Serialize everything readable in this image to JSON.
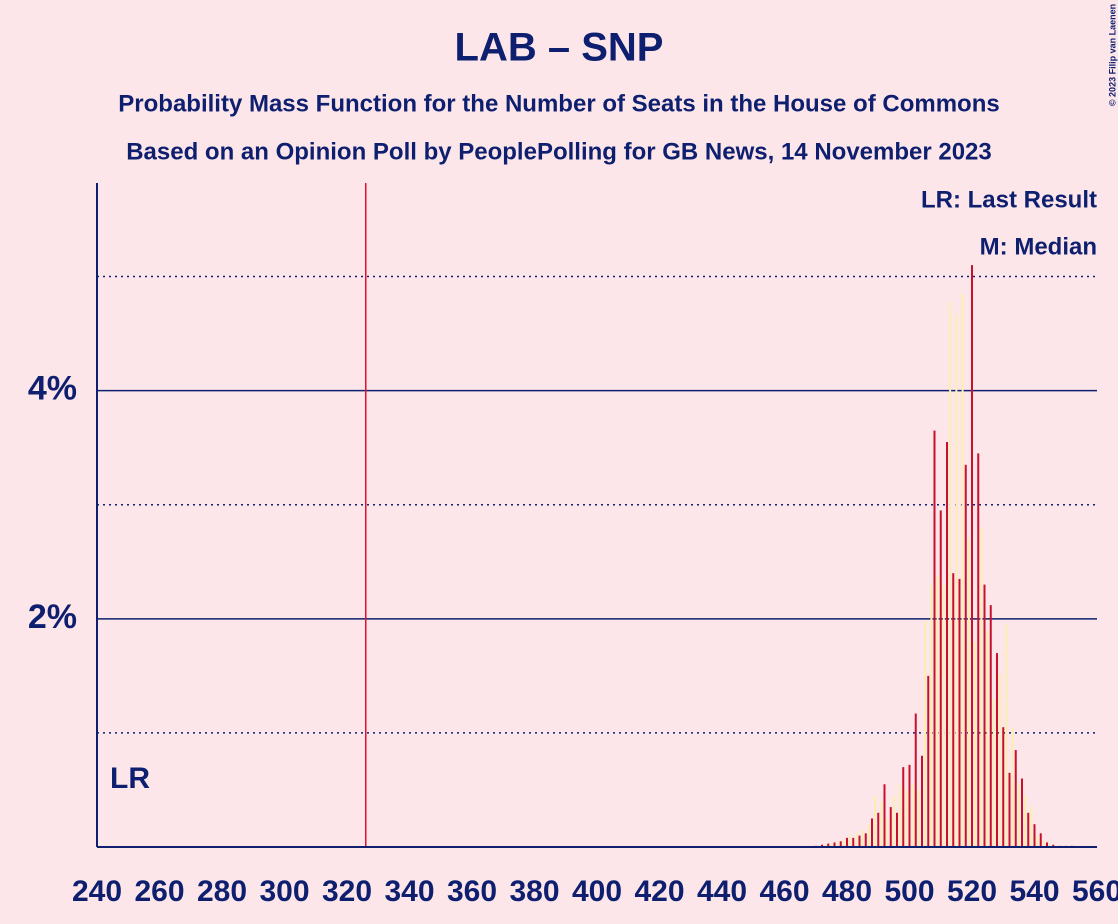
{
  "chart_data": {
    "type": "bar",
    "title": "LAB – SNP",
    "subtitle": [
      "Probability Mass Function for the Number of Seats in the House of Commons",
      "Based on an Opinion Poll by PeoplePolling for GB News, 14 November 2023"
    ],
    "legend": [
      "LR: Last Result",
      "M: Median"
    ],
    "last_result": 326,
    "last_result_label": "LR",
    "last_result_color": "#e0102e",
    "copyright": "© 2023 Filip van Laenen",
    "colors": [
      "#c8102e",
      "#fbeeb0"
    ],
    "x": [
      470,
      471,
      472,
      473,
      474,
      475,
      476,
      477,
      478,
      479,
      480,
      481,
      482,
      483,
      484,
      485,
      486,
      487,
      488,
      489,
      490,
      491,
      492,
      493,
      494,
      495,
      496,
      497,
      498,
      499,
      500,
      501,
      502,
      503,
      504,
      505,
      506,
      507,
      508,
      509,
      510,
      511,
      512,
      513,
      514,
      515,
      516,
      517,
      518,
      519,
      520,
      521,
      522,
      523,
      524,
      525,
      526,
      527,
      528,
      529,
      530,
      531,
      532,
      533,
      534,
      535,
      536,
      537,
      538,
      539,
      540,
      541,
      542,
      543,
      544,
      545,
      546,
      547,
      548,
      549,
      550,
      551,
      552
    ],
    "values": [
      0.01,
      0.01,
      0.02,
      0.02,
      0.03,
      0.03,
      0.04,
      0.05,
      0.05,
      0.06,
      0.08,
      0.1,
      0.08,
      0.12,
      0.1,
      0.15,
      0.12,
      0.2,
      0.25,
      0.45,
      0.3,
      0.4,
      0.55,
      0.25,
      0.35,
      0.45,
      0.3,
      0.55,
      0.7,
      0.5,
      0.72,
      0.55,
      1.17,
      0.5,
      0.8,
      1.98,
      1.5,
      2.3,
      3.65,
      2.38,
      2.95,
      2.3,
      3.55,
      4.78,
      2.4,
      4.68,
      2.35,
      4.85,
      3.35,
      2.7,
      5.1,
      1.8,
      3.45,
      2.8,
      2.3,
      1.9,
      2.12,
      1.3,
      1.7,
      1.52,
      1.05,
      1.95,
      0.65,
      1.05,
      0.85,
      0.55,
      0.6,
      0.45,
      0.3,
      0.35,
      0.2,
      0.1,
      0.12,
      0.06,
      0.04,
      0.03,
      0.02,
      0.01,
      0.01,
      0.01,
      0.01,
      0.01,
      0.01
    ],
    "xlim": [
      240,
      560
    ],
    "xticks": [
      240,
      260,
      280,
      300,
      320,
      340,
      360,
      380,
      400,
      420,
      440,
      460,
      480,
      500,
      520,
      540,
      560
    ],
    "ylim": [
      0,
      5.82
    ],
    "yticks": [
      {
        "value": 2,
        "label": "2%"
      },
      {
        "value": 4,
        "label": "4%"
      }
    ],
    "minor_yticks": [
      1,
      3,
      5
    ],
    "grid": true
  }
}
